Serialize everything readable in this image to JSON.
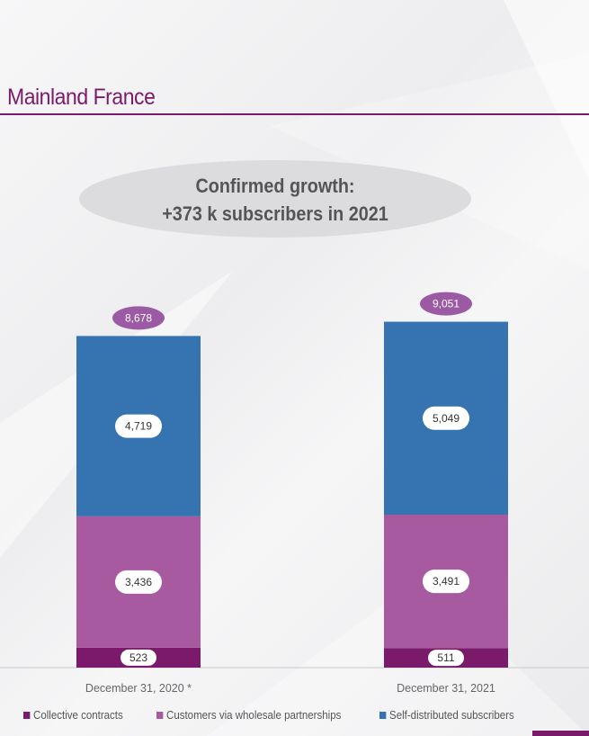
{
  "title": "Mainland France",
  "callout": {
    "line1": "Confirmed growth:",
    "line2": "+373 k subscribers in 2021"
  },
  "colors": {
    "collective": "#7b1a6a",
    "wholesale": "#a85aa1",
    "self": "#3573b1",
    "total_badge": "#9b5aa3",
    "accent": "#7b1a6a"
  },
  "chart_data": {
    "type": "bar",
    "stacked": true,
    "categories": [
      "December 31, 2020 *",
      "December 31, 2021"
    ],
    "series": [
      {
        "name": "Collective contracts",
        "values": [
          523,
          511
        ],
        "color_key": "collective"
      },
      {
        "name": "Customers via wholesale partnerships",
        "values": [
          3436,
          3491
        ],
        "color_key": "wholesale"
      },
      {
        "name": "Self-distributed subscribers",
        "values": [
          4719,
          5049
        ],
        "color_key": "self"
      }
    ],
    "value_labels": [
      [
        "523",
        "3,436",
        "4,719"
      ],
      [
        "511",
        "3,491",
        "5,049"
      ]
    ],
    "totals": [
      8678,
      9051
    ],
    "total_labels": [
      "8,678",
      "9,051"
    ],
    "ylim": [
      0,
      9700
    ],
    "legend_position": "bottom"
  },
  "legend": [
    {
      "label": "Collective contracts",
      "color_key": "collective"
    },
    {
      "label": "Customers via wholesale partnerships",
      "color_key": "wholesale"
    },
    {
      "label": "Self-distributed subscribers",
      "color_key": "self"
    }
  ]
}
